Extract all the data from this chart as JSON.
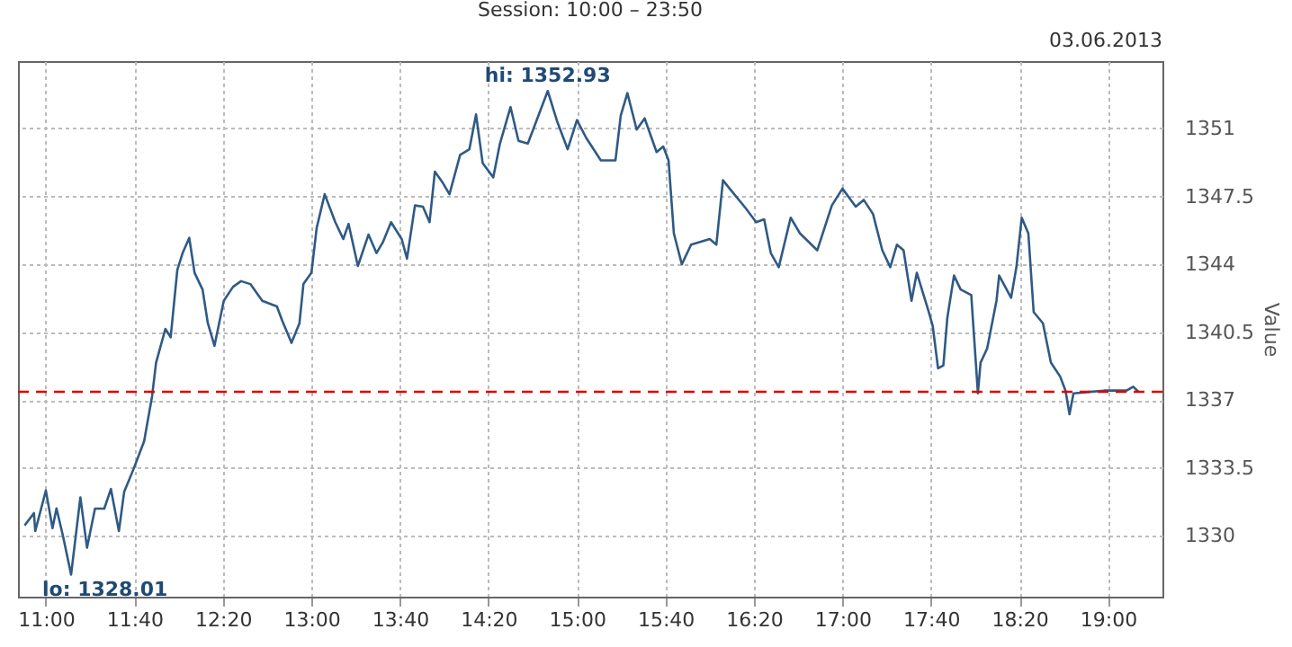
{
  "chart_data": {
    "type": "line",
    "title": "Session: 10:00 – 23:50",
    "ylabel": "Value",
    "annotations": [
      "03.06.2013",
      {
        "text": "hi: 1352.93",
        "x": 14.78,
        "y": 1352.93
      },
      {
        "text": "lo: 1328.01",
        "x": 11.19,
        "y": 1328.01
      }
    ],
    "x": [
      10.84,
      10.91,
      10.92,
      11.0,
      11.05,
      11.08,
      11.13,
      11.19,
      11.26,
      11.31,
      11.37,
      11.44,
      11.49,
      11.55,
      11.59,
      11.66,
      11.74,
      11.8,
      11.83,
      11.9,
      11.94,
      11.99,
      12.03,
      12.08,
      12.12,
      12.18,
      12.22,
      12.27,
      12.34,
      12.41,
      12.47,
      12.54,
      12.63,
      12.74,
      12.78,
      12.85,
      12.91,
      12.94,
      13.0,
      13.04,
      13.1,
      13.18,
      13.24,
      13.28,
      13.35,
      13.43,
      13.49,
      13.54,
      13.6,
      13.68,
      13.72,
      13.78,
      13.84,
      13.89,
      13.93,
      13.99,
      14.04,
      14.12,
      14.19,
      14.24,
      14.29,
      14.37,
      14.42,
      14.5,
      14.56,
      14.63,
      14.67,
      14.78,
      14.85,
      14.93,
      15.0,
      15.07,
      15.18,
      15.29,
      15.33,
      15.38,
      15.45,
      15.51,
      15.6,
      15.65,
      15.69,
      15.73,
      15.79,
      15.86,
      16.0,
      16.05,
      16.1,
      16.15,
      16.27,
      16.35,
      16.41,
      16.46,
      16.52,
      16.61,
      16.68,
      16.81,
      16.92,
      17.0,
      17.1,
      17.16,
      17.23,
      17.3,
      17.36,
      17.41,
      17.46,
      17.52,
      17.56,
      17.65,
      17.68,
      17.72,
      17.76,
      17.79,
      17.84,
      17.89,
      17.97,
      18.02,
      18.04,
      18.09,
      18.16,
      18.18,
      18.27,
      18.31,
      18.35,
      18.4,
      18.44,
      18.51,
      18.57,
      18.64,
      18.68,
      18.71,
      18.74,
      18.84,
      18.97,
      19.14,
      19.19,
      19.23
    ],
    "series": [
      {
        "color": "#2f5a85",
        "values": [
          1330.54,
          1331.18,
          1330.25,
          1332.34,
          1330.4,
          1331.42,
          1329.96,
          1328.01,
          1331.99,
          1329.39,
          1331.41,
          1331.41,
          1332.42,
          1330.25,
          1332.28,
          1333.44,
          1334.88,
          1337.2,
          1338.93,
          1340.67,
          1340.24,
          1343.71,
          1344.58,
          1345.36,
          1343.56,
          1342.7,
          1340.96,
          1339.8,
          1342.12,
          1342.84,
          1343.13,
          1342.98,
          1342.12,
          1341.83,
          1341.1,
          1339.95,
          1340.96,
          1342.98,
          1343.56,
          1345.88,
          1347.61,
          1346.17,
          1345.3,
          1346.08,
          1343.91,
          1345.53,
          1344.58,
          1345.16,
          1346.17,
          1345.3,
          1344.29,
          1347.03,
          1346.97,
          1346.17,
          1348.77,
          1348.19,
          1347.61,
          1349.64,
          1349.93,
          1351.72,
          1349.21,
          1348.48,
          1350.22,
          1352.1,
          1350.36,
          1350.22,
          1350.94,
          1352.93,
          1351.38,
          1349.93,
          1351.43,
          1350.51,
          1349.35,
          1349.35,
          1351.66,
          1352.82,
          1350.94,
          1351.52,
          1349.78,
          1350.07,
          1349.35,
          1345.59,
          1344.0,
          1345.01,
          1345.3,
          1345.01,
          1348.33,
          1347.9,
          1346.9,
          1346.17,
          1346.32,
          1344.58,
          1343.85,
          1346.4,
          1345.59,
          1344.72,
          1347.03,
          1347.9,
          1346.97,
          1347.32,
          1346.59,
          1344.72,
          1343.85,
          1345.01,
          1344.72,
          1342.12,
          1343.56,
          1341.54,
          1340.81,
          1338.64,
          1338.79,
          1341.25,
          1343.42,
          1342.7,
          1342.41,
          1337.35,
          1338.93,
          1339.66,
          1342.12,
          1343.42,
          1342.27,
          1343.85,
          1346.4,
          1345.59,
          1341.54,
          1340.96,
          1338.93,
          1338.21,
          1337.49,
          1336.27,
          1337.35,
          1337.41,
          1337.49,
          1337.49,
          1337.69,
          1337.43
        ]
      }
    ],
    "xlim": [
      10.79,
      19.41
    ],
    "xticks": [
      {
        "value": 11,
        "label": "11:00"
      },
      {
        "value": 11.6667,
        "label": "11:40"
      },
      {
        "value": 12.3333,
        "label": "12:20"
      },
      {
        "value": 13,
        "label": "13:00"
      },
      {
        "value": 13.6667,
        "label": "13:40"
      },
      {
        "value": 14.3333,
        "label": "14:20"
      },
      {
        "value": 15,
        "label": "15:00"
      },
      {
        "value": 15.6667,
        "label": "15:40"
      },
      {
        "value": 16.3333,
        "label": "16:20"
      },
      {
        "value": 17,
        "label": "17:00"
      },
      {
        "value": 17.6667,
        "label": "17:40"
      },
      {
        "value": 18.3333,
        "label": "18:20"
      },
      {
        "value": 19,
        "label": "19:00"
      }
    ],
    "ylim": [
      1326.87,
      1354.47
    ],
    "yticks": [
      1330,
      1333.5,
      1337,
      1340.5,
      1344,
      1347.5,
      1351
    ],
    "ref_lines": [
      {
        "axis": "y",
        "value": 1337.43,
        "color": "#dd0000",
        "line_style": "dashed"
      }
    ],
    "grid": true,
    "marker": "none",
    "line_style": "solid"
  }
}
